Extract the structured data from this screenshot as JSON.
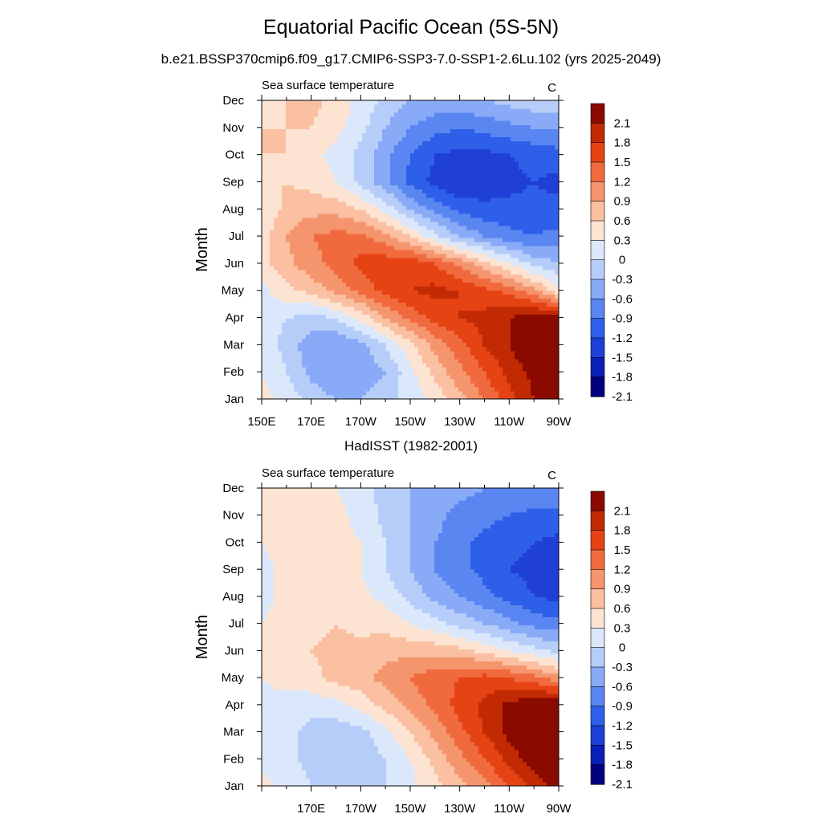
{
  "title": "Equatorial Pacific Ocean (5S-5N)",
  "subtitle": "b.e21.BSSP370cmip6.f09_g17.CMIP6-SSP3-7.0-SSP1-2.6Lu.102 (yrs 2025-2049)",
  "second_title": "HadISST (1982-2001)",
  "colors": {
    "levels": [
      "#00007f",
      "#0a1fb5",
      "#1f3fd6",
      "#2e5fe8",
      "#5a86f2",
      "#88aaf7",
      "#b7cdf9",
      "#dbe8fb",
      "#fde3d2",
      "#fbbfa2",
      "#f5956e",
      "#f06a3e",
      "#e54313",
      "#c22a04",
      "#8b0a00"
    ]
  },
  "chart_data": [
    {
      "type": "heatmap",
      "name": "model",
      "title_left": "Sea surface temperature",
      "title_right": "C",
      "ylabel": "Month",
      "xlabel": "",
      "x_ticks": [
        "150E",
        "170E",
        "170W",
        "150W",
        "130W",
        "110W",
        "90W"
      ],
      "x_tick_lons": [
        150,
        170,
        190,
        210,
        230,
        250,
        270
      ],
      "y_ticks": [
        "Jan",
        "Feb",
        "Mar",
        "Apr",
        "May",
        "Jun",
        "Jul",
        "Aug",
        "Sep",
        "Oct",
        "Nov",
        "Dec"
      ],
      "xlim": [
        150,
        270
      ],
      "ylim": [
        1,
        12
      ],
      "colorbar_labels": [
        "2.1",
        "1.8",
        "1.5",
        "1.2",
        "0.9",
        "0.6",
        "0.3",
        "0",
        "-0.3",
        "-0.6",
        "-0.9",
        "-1.2",
        "-1.5",
        "-1.8",
        "-2.1"
      ],
      "x": [
        150,
        160,
        170,
        180,
        190,
        200,
        210,
        220,
        230,
        240,
        250,
        260,
        270
      ],
      "z": [
        [
          0.1,
          -0.1,
          -0.4,
          -0.6,
          -0.6,
          -0.4,
          -0.2,
          0.1,
          0.5,
          0.9,
          1.4,
          1.8,
          2.0
        ],
        [
          0.0,
          -0.3,
          -0.7,
          -0.9,
          -0.8,
          -0.6,
          -0.1,
          0.4,
          0.8,
          1.2,
          1.6,
          1.9,
          2.1
        ],
        [
          -0.1,
          -0.4,
          -0.8,
          -0.9,
          -0.7,
          -0.3,
          0.2,
          0.7,
          1.1,
          1.5,
          1.8,
          2.1,
          2.2
        ],
        [
          -0.2,
          -0.3,
          -0.4,
          -0.3,
          0.1,
          0.6,
          1.0,
          1.3,
          1.5,
          1.6,
          1.8,
          2.0,
          2.0
        ],
        [
          -0.1,
          0.2,
          0.4,
          0.7,
          1.0,
          1.3,
          1.5,
          1.6,
          1.5,
          1.3,
          1.1,
          0.7,
          0.1
        ],
        [
          0.2,
          0.5,
          0.8,
          1.0,
          1.3,
          1.4,
          1.4,
          1.2,
          0.8,
          0.4,
          0.0,
          -0.4,
          -0.6
        ],
        [
          0.2,
          0.6,
          0.9,
          1.0,
          1.0,
          0.7,
          0.3,
          -0.2,
          -0.6,
          -0.9,
          -1.1,
          -1.2,
          -1.1
        ],
        [
          0.0,
          0.4,
          0.5,
          0.5,
          0.3,
          -0.1,
          -0.6,
          -1.0,
          -1.3,
          -1.4,
          -1.4,
          -1.4,
          -1.4
        ],
        [
          0.2,
          0.3,
          0.2,
          0.0,
          -0.4,
          -0.8,
          -1.3,
          -1.6,
          -1.8,
          -1.7,
          -1.6,
          -1.5,
          -1.6
        ],
        [
          0.3,
          0.3,
          0.1,
          -0.1,
          -0.4,
          -0.8,
          -1.2,
          -1.5,
          -1.6,
          -1.6,
          -1.5,
          -1.4,
          -1.3
        ],
        [
          0.3,
          0.3,
          0.3,
          0.1,
          -0.2,
          -0.6,
          -0.9,
          -1.1,
          -1.2,
          -1.1,
          -1.0,
          -0.9,
          -0.9
        ],
        [
          0.2,
          0.3,
          0.4,
          0.2,
          -0.1,
          -0.4,
          -0.6,
          -0.7,
          -0.7,
          -0.6,
          -0.5,
          -0.4,
          -0.4
        ]
      ]
    },
    {
      "type": "heatmap",
      "name": "hadisst",
      "title_left": "Sea surface temperature",
      "title_right": "C",
      "ylabel": "Month",
      "xlabel": "",
      "x_ticks": [
        "170E",
        "170W",
        "150W",
        "130W",
        "110W",
        "90W"
      ],
      "x_tick_lons": [
        170,
        190,
        210,
        230,
        250,
        270
      ],
      "y_ticks": [
        "Jan",
        "Feb",
        "Mar",
        "Apr",
        "May",
        "Jun",
        "Jul",
        "Aug",
        "Sep",
        "Oct",
        "Nov",
        "Dec"
      ],
      "xlim": [
        150,
        270
      ],
      "ylim": [
        1,
        12
      ],
      "colorbar_labels": [
        "2.1",
        "1.8",
        "1.5",
        "1.2",
        "0.9",
        "0.6",
        "0.3",
        "0",
        "-0.3",
        "-0.6",
        "-0.9",
        "-1.2",
        "-1.5",
        "-1.8",
        "-2.1"
      ],
      "x": [
        150,
        160,
        170,
        180,
        190,
        200,
        210,
        220,
        230,
        240,
        250,
        260,
        270
      ],
      "z": [
        [
          0.1,
          -0.1,
          -0.3,
          -0.4,
          -0.4,
          -0.3,
          -0.1,
          0.2,
          0.5,
          0.8,
          1.2,
          1.6,
          1.9
        ],
        [
          -0.1,
          -0.2,
          -0.4,
          -0.5,
          -0.5,
          -0.3,
          0.0,
          0.4,
          0.8,
          1.2,
          1.6,
          2.0,
          2.2
        ],
        [
          -0.1,
          -0.2,
          -0.4,
          -0.5,
          -0.4,
          -0.1,
          0.3,
          0.7,
          1.1,
          1.5,
          1.9,
          2.3,
          2.4
        ],
        [
          -0.1,
          -0.1,
          -0.2,
          -0.1,
          0.1,
          0.4,
          0.7,
          1.0,
          1.3,
          1.6,
          1.9,
          2.1,
          2.2
        ],
        [
          0.0,
          0.1,
          0.2,
          0.4,
          0.5,
          0.7,
          0.9,
          1.1,
          1.2,
          1.3,
          1.2,
          1.0,
          0.7
        ],
        [
          0.1,
          0.2,
          0.3,
          0.4,
          0.4,
          0.5,
          0.5,
          0.5,
          0.4,
          0.2,
          0.0,
          -0.2,
          -0.4
        ],
        [
          0.0,
          0.1,
          0.2,
          0.3,
          0.2,
          0.2,
          0.0,
          -0.2,
          -0.4,
          -0.6,
          -0.8,
          -1.0,
          -1.1
        ],
        [
          -0.1,
          0.1,
          0.2,
          0.2,
          0.1,
          -0.1,
          -0.4,
          -0.7,
          -0.9,
          -1.1,
          -1.3,
          -1.5,
          -1.6
        ],
        [
          -0.1,
          0.1,
          0.3,
          0.2,
          0.0,
          -0.3,
          -0.6,
          -0.9,
          -1.1,
          -1.3,
          -1.5,
          -1.6,
          -1.7
        ],
        [
          0.0,
          0.1,
          0.1,
          0.1,
          0.0,
          -0.3,
          -0.6,
          -0.9,
          -1.1,
          -1.3,
          -1.4,
          -1.5,
          -1.6
        ],
        [
          0.1,
          0.1,
          0.1,
          0.1,
          -0.1,
          -0.4,
          -0.6,
          -0.8,
          -1.0,
          -1.1,
          -1.2,
          -1.3,
          -1.3
        ],
        [
          0.1,
          0.1,
          0.1,
          0.0,
          -0.2,
          -0.4,
          -0.6,
          -0.7,
          -0.8,
          -0.9,
          -0.9,
          -0.9,
          -1.0
        ]
      ]
    }
  ]
}
